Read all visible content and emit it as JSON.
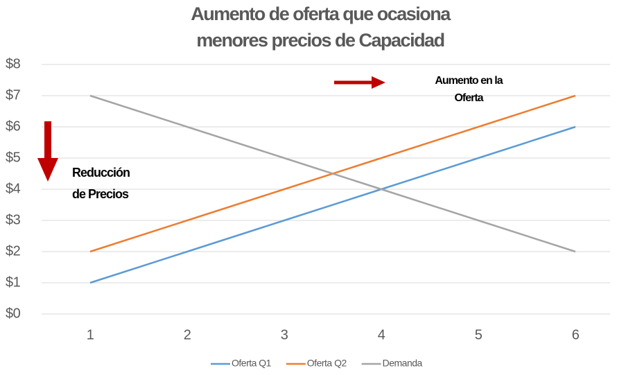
{
  "chart_data": {
    "type": "line",
    "title": [
      "Aumento de oferta que ocasiona",
      "menores precios de Capacidad"
    ],
    "categories": [
      1,
      2,
      3,
      4,
      5,
      6
    ],
    "series": [
      {
        "name": "Oferta Q1",
        "color": "#5b9bd5",
        "values": [
          1,
          2,
          3,
          4,
          5,
          6
        ]
      },
      {
        "name": "Oferta Q2",
        "color": "#ed7d31",
        "values": [
          2,
          3,
          4,
          5,
          6,
          7
        ]
      },
      {
        "name": "Demanda",
        "color": "#a5a5a5",
        "values": [
          7,
          6,
          5,
          4,
          3,
          2
        ]
      }
    ],
    "ylim": [
      0,
      8
    ],
    "yticks": [
      {
        "value": 0,
        "label": "$0"
      },
      {
        "value": 1,
        "label": "$1"
      },
      {
        "value": 2,
        "label": "$2"
      },
      {
        "value": 3,
        "label": "$3"
      },
      {
        "value": 4,
        "label": "$4"
      },
      {
        "value": 5,
        "label": "$5"
      },
      {
        "value": 6,
        "label": "$6"
      },
      {
        "value": 7,
        "label": "$7"
      },
      {
        "value": 8,
        "label": "$8"
      }
    ],
    "grid": true,
    "legend": "bottom",
    "annotations": [
      {
        "lines": [
          "Aumento en la",
          "Oferta"
        ]
      },
      {
        "lines": [
          "Reducción",
          "de Precios"
        ]
      }
    ]
  }
}
